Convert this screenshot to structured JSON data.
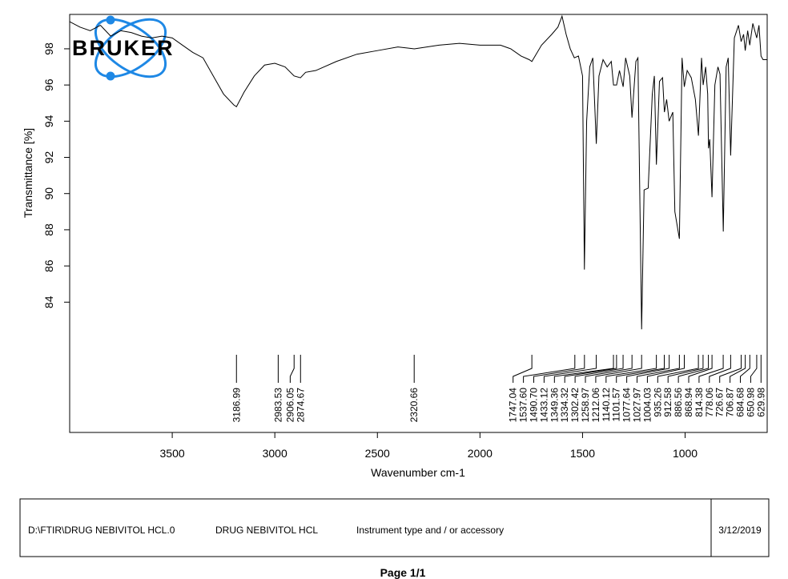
{
  "chart_data": {
    "type": "line",
    "logo": "BRUKER",
    "x_label": "Wavenumber cm-1",
    "y_label": "Transmittance [%]",
    "color": "#000000",
    "xlim": [
      4000,
      600
    ],
    "ylim": [
      76.8,
      99.9
    ],
    "xticks": [
      3500,
      3000,
      2500,
      2000,
      1500,
      1000
    ],
    "yticks": [
      84,
      86,
      88,
      90,
      92,
      94,
      96,
      98
    ],
    "x": [
      4000,
      3950,
      3900,
      3850,
      3800,
      3750,
      3700,
      3650,
      3600,
      3550,
      3500,
      3450,
      3400,
      3350,
      3300,
      3250,
      3200,
      3187,
      3150,
      3100,
      3050,
      3000,
      2950,
      2906,
      2875,
      2850,
      2800,
      2700,
      2600,
      2500,
      2400,
      2320,
      2200,
      2100,
      2000,
      1900,
      1850,
      1800,
      1760,
      1747,
      1700,
      1650,
      1620,
      1600,
      1580,
      1560,
      1540,
      1520,
      1500,
      1491,
      1480,
      1465,
      1450,
      1433,
      1420,
      1400,
      1380,
      1360,
      1349,
      1334,
      1320,
      1302,
      1290,
      1270,
      1259,
      1240,
      1230,
      1212,
      1200,
      1180,
      1160,
      1150,
      1140,
      1125,
      1110,
      1101,
      1090,
      1078,
      1060,
      1050,
      1028,
      1015,
      1004,
      990,
      970,
      950,
      935,
      920,
      912,
      900,
      890,
      886,
      880,
      869,
      855,
      840,
      830,
      814,
      800,
      790,
      778,
      760,
      740,
      727,
      715,
      707,
      695,
      685,
      670,
      651,
      640,
      630,
      620,
      600
    ],
    "values": [
      99.5,
      99.2,
      99.0,
      99.3,
      98.7,
      99.0,
      98.9,
      98.7,
      98.6,
      98.7,
      98.6,
      98.2,
      97.8,
      97.5,
      96.5,
      95.5,
      94.9,
      94.8,
      95.6,
      96.5,
      97.1,
      97.2,
      97.0,
      96.5,
      96.4,
      96.7,
      96.8,
      97.3,
      97.7,
      97.9,
      98.1,
      98.0,
      98.2,
      98.3,
      98.2,
      98.2,
      98.0,
      97.6,
      97.4,
      97.3,
      98.2,
      98.8,
      99.2,
      99.8,
      98.8,
      98.0,
      97.5,
      97.6,
      96.5,
      85.8,
      94.0,
      97.0,
      97.5,
      92.75,
      96.5,
      97.4,
      97.0,
      97.3,
      96.0,
      96.0,
      96.8,
      95.9,
      97.5,
      96.5,
      94.2,
      97.3,
      97.5,
      82.5,
      90.2,
      90.3,
      95.5,
      96.5,
      91.6,
      96.2,
      96.4,
      94.5,
      95.2,
      94.0,
      94.5,
      89.0,
      87.5,
      97.5,
      95.9,
      96.8,
      96.4,
      95.2,
      93.2,
      97.5,
      96.0,
      97.0,
      95.5,
      92.5,
      93.0,
      89.8,
      96.0,
      97.0,
      96.6,
      87.9,
      97.0,
      97.5,
      92.1,
      98.6,
      99.3,
      98.4,
      98.8,
      97.9,
      99.0,
      98.2,
      99.4,
      98.6,
      99.3,
      97.6,
      97.4,
      97.4
    ],
    "peaks": [
      3186.99,
      2983.53,
      2906.05,
      2874.67,
      2320.66,
      1747.04,
      {
        "value": 1537.6,
        "label": "1537.60"
      },
      {
        "value": 1490.7,
        "label": "1490.70"
      },
      1433.12,
      1349.36,
      1334.32,
      1302.42,
      1258.97,
      1212.06,
      1140.12,
      1101.57,
      1077.64,
      1027.97,
      1004.03,
      935.26,
      912.58,
      886.56,
      868.94,
      814.38,
      778.06,
      726.67,
      706.87,
      684.68,
      650.98,
      629.98
    ]
  },
  "footer": {
    "file": "D:\\FTIR\\DRUG NEBIVITOL HCL.0",
    "sample": "DRUG NEBIVITOL HCL",
    "instrument": "Instrument type and / or accessory",
    "date": "3/12/2019",
    "page": "Page 1/1"
  }
}
